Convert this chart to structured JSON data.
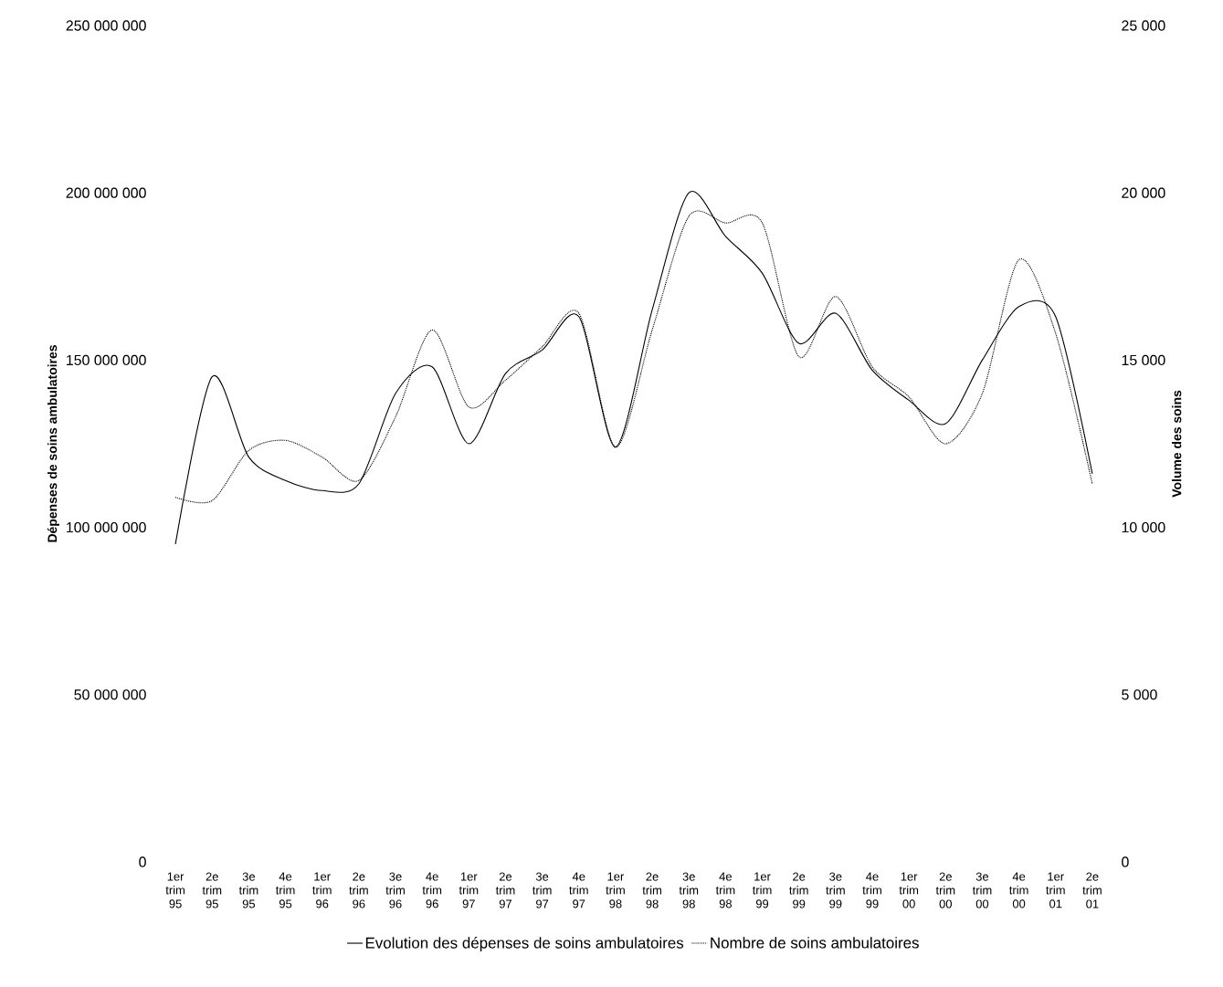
{
  "chart_data": {
    "type": "line",
    "categories": [
      "1er trim 95",
      "2e trim 95",
      "3e trim 95",
      "4e trim 95",
      "1er trim 96",
      "2e trim 96",
      "3e trim 96",
      "4e trim 96",
      "1er trim 97",
      "2e trim 97",
      "3e trim 97",
      "4e trim 97",
      "1er trim 98",
      "2e trim 98",
      "3e trim 98",
      "4e trim 98",
      "1er trim 99",
      "2e trim 99",
      "3e trim 99",
      "4e trim 99",
      "1er trim 00",
      "2e trim 00",
      "3e trim 00",
      "4e trim 00",
      "1er trim 01",
      "2e trim 01"
    ],
    "series": [
      {
        "name": "Evolution des dépenses de soins ambulatoires",
        "color": "#000000",
        "line_style": "solid",
        "values": [
          95000000,
          145000000,
          121000000,
          114000000,
          111000000,
          113000000,
          140000000,
          148000000,
          125000000,
          146000000,
          153000000,
          163000000,
          124000000,
          165000000,
          200000000,
          187000000,
          176000000,
          155000000,
          164000000,
          147000000,
          138000000,
          131000000,
          150000000,
          166000000,
          163000000,
          116000000
        ]
      },
      {
        "name": "Nombre de soins ambulatoires",
        "color": "#000000",
        "line_style": "dotted",
        "axis": "y2",
        "values": [
          10900,
          10800,
          12300,
          12600,
          12100,
          11400,
          13300,
          15900,
          13600,
          14400,
          15400,
          16400,
          12400,
          15900,
          19300,
          19100,
          19100,
          15100,
          16900,
          14800,
          13900,
          12500,
          14000,
          18000,
          15800,
          11300
        ]
      }
    ],
    "ylabel": "Dépenses de soins ambulatoires",
    "y2label": "Volume des soins",
    "ylim": [
      0,
      250000000
    ],
    "yticks": [
      0,
      {
        "value": 50000000,
        "label": "50 000 000"
      },
      {
        "value": 100000000,
        "label": "100 000 000"
      },
      {
        "value": 150000000,
        "label": "150 000 000"
      },
      {
        "value": 200000000,
        "label": "200 000 000"
      },
      {
        "value": 250000000,
        "label": "250 000 000"
      }
    ],
    "y2lim": [
      0,
      25000
    ],
    "y2ticks": [
      0,
      {
        "value": 5000,
        "label": "5 000"
      },
      {
        "value": 10000,
        "label": "10 000"
      },
      {
        "value": 15000,
        "label": "15 000"
      },
      {
        "value": 20000,
        "label": "20 000"
      },
      {
        "value": 25000,
        "label": "25 000"
      }
    ],
    "legend": "bottom"
  }
}
